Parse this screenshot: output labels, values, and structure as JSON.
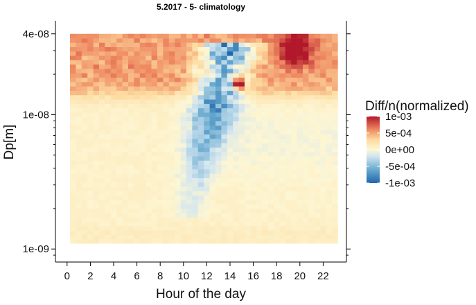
{
  "chart_data": {
    "type": "heatmap",
    "title": "5.2017 - 5- climatology",
    "xlabel": "Hour of the day",
    "ylabel": "Dp[m]",
    "x_ticks": [
      0,
      2,
      4,
      6,
      8,
      10,
      12,
      14,
      16,
      18,
      20,
      22
    ],
    "x_range": [
      -1,
      24
    ],
    "x_cells": [
      0.5,
      23
    ],
    "y_scale": "log10",
    "y_ticks": [
      "4e-08",
      "1e-08",
      "1e-09"
    ],
    "y_tick_values": [
      4e-08,
      1e-08,
      1e-09
    ],
    "y_range": [
      8e-10,
      5e-08
    ],
    "y_cells": [
      1.1e-09,
      4e-08
    ],
    "legend": {
      "title": "Diff/n(normalized)",
      "placement": "right",
      "labels": [
        "1e-03",
        "5e-04",
        "0e+00",
        "-5e-04",
        "-1e-03"
      ],
      "values": [
        0.001,
        0.0005,
        0,
        -0.0005,
        -0.001
      ]
    },
    "colors": {
      "scale": [
        "#2166ac",
        "#67a9cf",
        "#d1e5f0",
        "#fdf6d3",
        "#fddba0",
        "#ef8a62",
        "#b2182b"
      ],
      "scale_stops": [
        -0.001,
        -0.0006,
        -0.0002,
        0,
        0.0003,
        0.0006,
        0.001
      ]
    },
    "features": [
      {
        "name": "upper-band-positive",
        "hours": [
          0.5,
          23
        ],
        "dp": [
          1.5e-08,
          4e-08
        ],
        "value": 0.00045
      },
      {
        "name": "evening-maximum",
        "hours": [
          18,
          21
        ],
        "dp": [
          2.2e-08,
          3.5e-08
        ],
        "value": 0.001
      },
      {
        "name": "banana-growth-negative",
        "hours": [
          10,
          17
        ],
        "dp": [
          2e-09,
          3e-08
        ],
        "value": -0.0008
      },
      {
        "name": "midday-spot-positive",
        "hours": [
          14.5,
          15
        ],
        "dp": [
          1.65e-08,
          1.75e-08
        ],
        "value": 0.001
      }
    ]
  }
}
